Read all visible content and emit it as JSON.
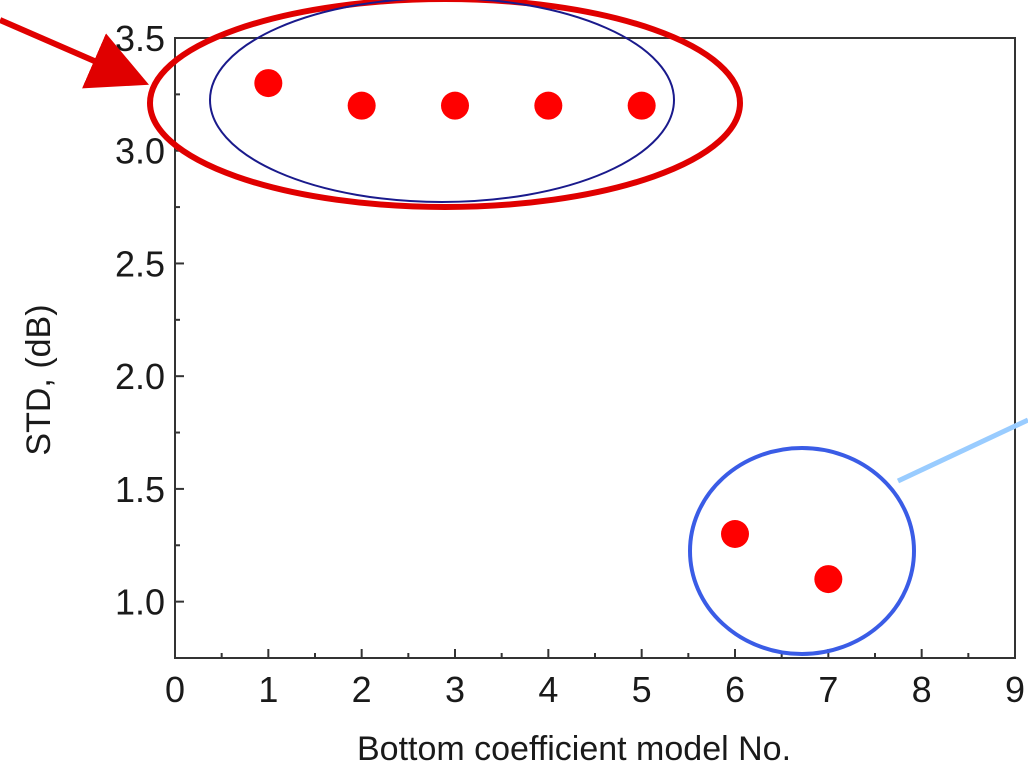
{
  "chart_data": {
    "type": "scatter",
    "title": "",
    "xlabel": "Bottom coefficient model No.",
    "ylabel": "STD, (dB)",
    "xlim": [
      0,
      9
    ],
    "ylim": [
      0.75,
      3.5
    ],
    "x_ticks": [
      0,
      1,
      2,
      3,
      4,
      5,
      6,
      7,
      8,
      9
    ],
    "y_ticks": [
      1.0,
      1.5,
      2.0,
      2.5,
      3.0,
      3.5
    ],
    "x_tick_labels": [
      "0",
      "1",
      "2",
      "3",
      "4",
      "5",
      "6",
      "7",
      "8",
      "9"
    ],
    "y_tick_labels": [
      "1.0",
      "1.5",
      "2.0",
      "2.5",
      "3.0",
      "3.5"
    ],
    "grid": false,
    "legend": "none",
    "series": [
      {
        "color": "#ff0000",
        "x": [
          1,
          2,
          3,
          4,
          5,
          6,
          7
        ],
        "y": [
          3.3,
          3.2,
          3.2,
          3.2,
          3.2,
          1.3,
          1.1
        ]
      }
    ],
    "annotations": [
      {
        "type": "ellipse",
        "color": "#e00000",
        "encloses_x": [
          1,
          5
        ],
        "description": ""
      },
      {
        "type": "ellipse",
        "color": "#1a1a8c",
        "encloses_x": [
          1,
          5
        ],
        "description": ""
      },
      {
        "type": "ellipse",
        "color": "#3a5ce6",
        "encloses_x": [
          6,
          7
        ],
        "description": ""
      },
      {
        "type": "arrow",
        "color": "#e00000",
        "points_to": "upper-left group"
      },
      {
        "type": "arrow",
        "color": "#99ccff",
        "points_to": "lower-right group"
      }
    ]
  }
}
